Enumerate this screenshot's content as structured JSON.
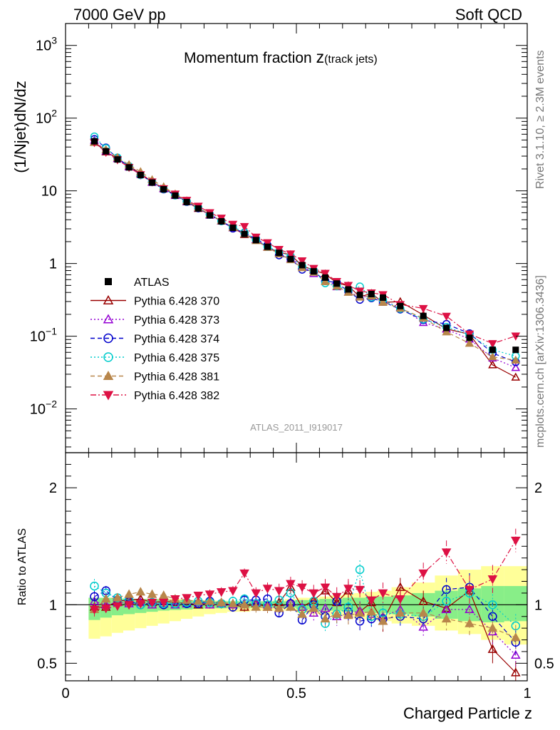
{
  "header": {
    "energy_label": "7000 GeV pp",
    "process_label": "Soft QCD"
  },
  "side": {
    "rivet_label": "Rivet 3.1.10, ≥ 2.3M events",
    "mcplots_label": "mcplots.cern.ch [arXiv:1306.3436]"
  },
  "chart_data": {
    "type": "line",
    "title_main": "Momentum fraction ",
    "title_var": "z",
    "title_sub": "(track jets)",
    "ylabel": "(1/Njet)dN/dz",
    "xlabel": "Charged Particle z",
    "ratio_ylabel": "Ratio to ATLAS",
    "analysis_label": "ATLAS_2011_I919017",
    "xlim": [
      0,
      1
    ],
    "ylim_log": [
      0.0025,
      2000
    ],
    "ratio_ylim": [
      0.35,
      2.3
    ],
    "y_ticks": [
      {
        "value": 0.01,
        "base": "10",
        "exp": "−2"
      },
      {
        "value": 0.1,
        "base": "10",
        "exp": "−1"
      },
      {
        "value": 1,
        "base": "1",
        "exp": ""
      },
      {
        "value": 10,
        "base": "10",
        "exp": ""
      },
      {
        "value": 100,
        "base": "10",
        "exp": "2"
      },
      {
        "value": 1000,
        "base": "10",
        "exp": "3"
      }
    ],
    "x_ticks": [
      {
        "value": 0,
        "label": "0"
      },
      {
        "value": 0.5,
        "label": "0.5"
      },
      {
        "value": 1,
        "label": "1"
      }
    ],
    "ratio_ticks": [
      {
        "value": 0.5,
        "label": "0.5"
      },
      {
        "value": 1,
        "label": "1"
      },
      {
        "value": 2,
        "label": "2"
      }
    ],
    "x": [
      0.0625,
      0.0875,
      0.1125,
      0.1375,
      0.1625,
      0.1875,
      0.2125,
      0.2375,
      0.2625,
      0.2875,
      0.3125,
      0.3375,
      0.3625,
      0.3875,
      0.4125,
      0.4375,
      0.4625,
      0.4875,
      0.5125,
      0.5375,
      0.5625,
      0.5875,
      0.6125,
      0.6375,
      0.6625,
      0.6875,
      0.725,
      0.775,
      0.825,
      0.875,
      0.925,
      0.975
    ],
    "atlas_values": [
      48,
      35,
      27,
      21,
      16.5,
      13,
      10.5,
      8.6,
      7,
      5.7,
      4.6,
      3.8,
      3.1,
      2.55,
      2.1,
      1.7,
      1.4,
      1.15,
      0.95,
      0.78,
      0.64,
      0.53,
      0.44,
      0.37,
      0.38,
      0.34,
      0.26,
      0.19,
      0.13,
      0.095,
      0.065,
      0.065
    ],
    "band_inner_lo": [
      0.87,
      0.89,
      0.91,
      0.92,
      0.93,
      0.94,
      0.95,
      0.955,
      0.96,
      0.965,
      0.97,
      0.97,
      0.975,
      0.975,
      0.975,
      0.975,
      0.975,
      0.975,
      0.96,
      0.96,
      0.95,
      0.95,
      0.94,
      0.94,
      0.93,
      0.93,
      0.92,
      0.9,
      0.88,
      0.86,
      0.85,
      0.86
    ],
    "band_inner_hi": [
      1.06,
      1.06,
      1.05,
      1.05,
      1.05,
      1.05,
      1.045,
      1.04,
      1.04,
      1.035,
      1.03,
      1.03,
      1.03,
      1.03,
      1.03,
      1.03,
      1.03,
      1.03,
      1.04,
      1.04,
      1.05,
      1.05,
      1.06,
      1.06,
      1.07,
      1.07,
      1.08,
      1.1,
      1.12,
      1.14,
      1.16,
      1.16
    ],
    "band_outer_lo": [
      0.71,
      0.73,
      0.76,
      0.78,
      0.8,
      0.82,
      0.84,
      0.86,
      0.88,
      0.9,
      0.92,
      0.93,
      0.94,
      0.94,
      0.95,
      0.95,
      0.95,
      0.95,
      0.93,
      0.92,
      0.91,
      0.9,
      0.89,
      0.88,
      0.87,
      0.86,
      0.84,
      0.82,
      0.78,
      0.75,
      0.7,
      0.66
    ],
    "band_outer_hi": [
      1.06,
      1.06,
      1.06,
      1.05,
      1.05,
      1.05,
      1.05,
      1.05,
      1.04,
      1.04,
      1.04,
      1.035,
      1.03,
      1.03,
      1.03,
      1.03,
      1.04,
      1.05,
      1.06,
      1.06,
      1.07,
      1.08,
      1.09,
      1.1,
      1.11,
      1.12,
      1.15,
      1.19,
      1.25,
      1.3,
      1.33,
      1.33
    ],
    "series": [
      {
        "name": "ATLAS",
        "color": "#000000",
        "marker": "square",
        "dash": "none",
        "ratio": []
      },
      {
        "name": "Pythia 6.428 370",
        "color": "#990000",
        "marker": "triangle-up-open",
        "dash": "solid",
        "ratio": [
          0.98,
          0.98,
          1.03,
          1.04,
          1.05,
          1.02,
          1.03,
          1.02,
          1.01,
          1.0,
          1.02,
          1.01,
          1.0,
          0.98,
          1.01,
          0.98,
          1.02,
          1.15,
          0.98,
          1.04,
          1.12,
          1.02,
          1.12,
          0.94,
          1.02,
          0.86,
          1.15,
          1.03,
          0.97,
          1.12,
          0.62,
          0.42
        ],
        "ratio_err": [
          0.06,
          0.04,
          0.03,
          0.03,
          0.03,
          0.03,
          0.03,
          0.03,
          0.03,
          0.03,
          0.04,
          0.04,
          0.04,
          0.04,
          0.05,
          0.05,
          0.06,
          0.06,
          0.06,
          0.07,
          0.07,
          0.08,
          0.08,
          0.08,
          0.09,
          0.09,
          0.08,
          0.09,
          0.1,
          0.12,
          0.12,
          0.1
        ]
      },
      {
        "name": "Pythia 6.428 373",
        "color": "#9400d3",
        "marker": "triangle-up-open",
        "dash": "dotted",
        "ratio": [
          1.03,
          1.0,
          1.02,
          1.01,
          1.02,
          1.0,
          1.01,
          1.0,
          1.01,
          1.02,
          1.0,
          1.01,
          1.0,
          1.0,
          1.02,
          1.0,
          0.97,
          1.02,
          0.98,
          0.93,
          0.97,
          0.9,
          0.92,
          0.95,
          0.92,
          0.9,
          0.96,
          0.81,
          0.96,
          0.96,
          0.77,
          0.57
        ],
        "ratio_err": [
          0.06,
          0.04,
          0.03,
          0.03,
          0.03,
          0.03,
          0.03,
          0.03,
          0.03,
          0.03,
          0.04,
          0.04,
          0.04,
          0.04,
          0.05,
          0.05,
          0.06,
          0.06,
          0.06,
          0.07,
          0.07,
          0.08,
          0.08,
          0.08,
          0.09,
          0.09,
          0.08,
          0.09,
          0.1,
          0.12,
          0.12,
          0.1
        ]
      },
      {
        "name": "Pythia 6.428 374",
        "color": "#0000cc",
        "marker": "circle-open",
        "dash": "dashed",
        "ratio": [
          1.07,
          1.12,
          1.04,
          1.03,
          1.0,
          1.02,
          1.0,
          1.01,
          1.01,
          1.01,
          1.03,
          1.01,
          0.98,
          1.04,
          1.04,
          1.05,
          0.93,
          1.01,
          0.87,
          1.0,
          0.9,
          1.03,
          0.94,
          0.86,
          0.88,
          0.88,
          0.9,
          0.88,
          1.13,
          1.15,
          0.9,
          0.68
        ],
        "ratio_err": [
          0.06,
          0.04,
          0.03,
          0.03,
          0.03,
          0.03,
          0.03,
          0.03,
          0.03,
          0.03,
          0.04,
          0.04,
          0.04,
          0.04,
          0.05,
          0.05,
          0.06,
          0.06,
          0.06,
          0.07,
          0.07,
          0.08,
          0.08,
          0.08,
          0.09,
          0.09,
          0.08,
          0.09,
          0.1,
          0.12,
          0.12,
          0.1
        ]
      },
      {
        "name": "Pythia 6.428 375",
        "color": "#00cccc",
        "marker": "circle-open",
        "dash": "dotted",
        "ratio": [
          1.16,
          1.1,
          1.06,
          1.04,
          1.0,
          1.02,
          1.01,
          1.01,
          1.02,
          1.03,
          1.02,
          1.01,
          1.03,
          1.05,
          1.01,
          1.0,
          1.04,
          1.1,
          0.96,
          1.03,
          0.84,
          0.92,
          0.98,
          1.3,
          0.9,
          0.93,
          0.92,
          0.9,
          1.03,
          1.1,
          1.0,
          0.82
        ],
        "ratio_err": [
          0.06,
          0.04,
          0.03,
          0.03,
          0.03,
          0.03,
          0.03,
          0.03,
          0.03,
          0.03,
          0.04,
          0.04,
          0.04,
          0.04,
          0.05,
          0.05,
          0.06,
          0.06,
          0.06,
          0.07,
          0.07,
          0.08,
          0.08,
          0.08,
          0.09,
          0.09,
          0.08,
          0.09,
          0.1,
          0.12,
          0.12,
          0.1
        ]
      },
      {
        "name": "Pythia 6.428 381",
        "color": "#b8864b",
        "marker": "triangle-up-filled",
        "dash": "dashed",
        "ratio": [
          0.96,
          1.05,
          1.06,
          1.09,
          1.11,
          1.09,
          1.08,
          1.05,
          1.04,
          1.03,
          1.03,
          1.02,
          1.01,
          1.0,
          0.98,
          0.98,
          0.97,
          0.98,
          0.92,
          0.97,
          0.88,
          0.92,
          0.91,
          0.93,
          0.94,
          0.86,
          0.93,
          0.93,
          0.88,
          0.84,
          0.8,
          0.72
        ],
        "ratio_err": [
          0.06,
          0.04,
          0.03,
          0.03,
          0.03,
          0.03,
          0.03,
          0.03,
          0.03,
          0.03,
          0.04,
          0.04,
          0.04,
          0.04,
          0.05,
          0.05,
          0.06,
          0.06,
          0.06,
          0.07,
          0.07,
          0.08,
          0.08,
          0.08,
          0.09,
          0.09,
          0.08,
          0.09,
          0.1,
          0.12,
          0.12,
          0.1
        ]
      },
      {
        "name": "Pythia 6.428 382",
        "color": "#dd1144",
        "marker": "triangle-down-filled",
        "dash": "dashdot",
        "ratio": [
          0.96,
          0.97,
          0.99,
          1.0,
          1.01,
          1.02,
          1.02,
          1.05,
          1.06,
          1.08,
          1.09,
          1.11,
          1.12,
          1.27,
          1.1,
          1.14,
          1.12,
          1.18,
          1.15,
          1.1,
          1.15,
          1.07,
          1.14,
          1.13,
          1.04,
          1.1,
          1.05,
          1.27,
          1.45,
          1.13,
          1.22,
          1.55
        ],
        "ratio_err": [
          0.06,
          0.04,
          0.03,
          0.03,
          0.03,
          0.03,
          0.03,
          0.03,
          0.03,
          0.03,
          0.04,
          0.04,
          0.04,
          0.04,
          0.05,
          0.05,
          0.06,
          0.06,
          0.06,
          0.07,
          0.07,
          0.08,
          0.08,
          0.08,
          0.09,
          0.09,
          0.08,
          0.09,
          0.1,
          0.12,
          0.12,
          0.1
        ]
      }
    ]
  }
}
